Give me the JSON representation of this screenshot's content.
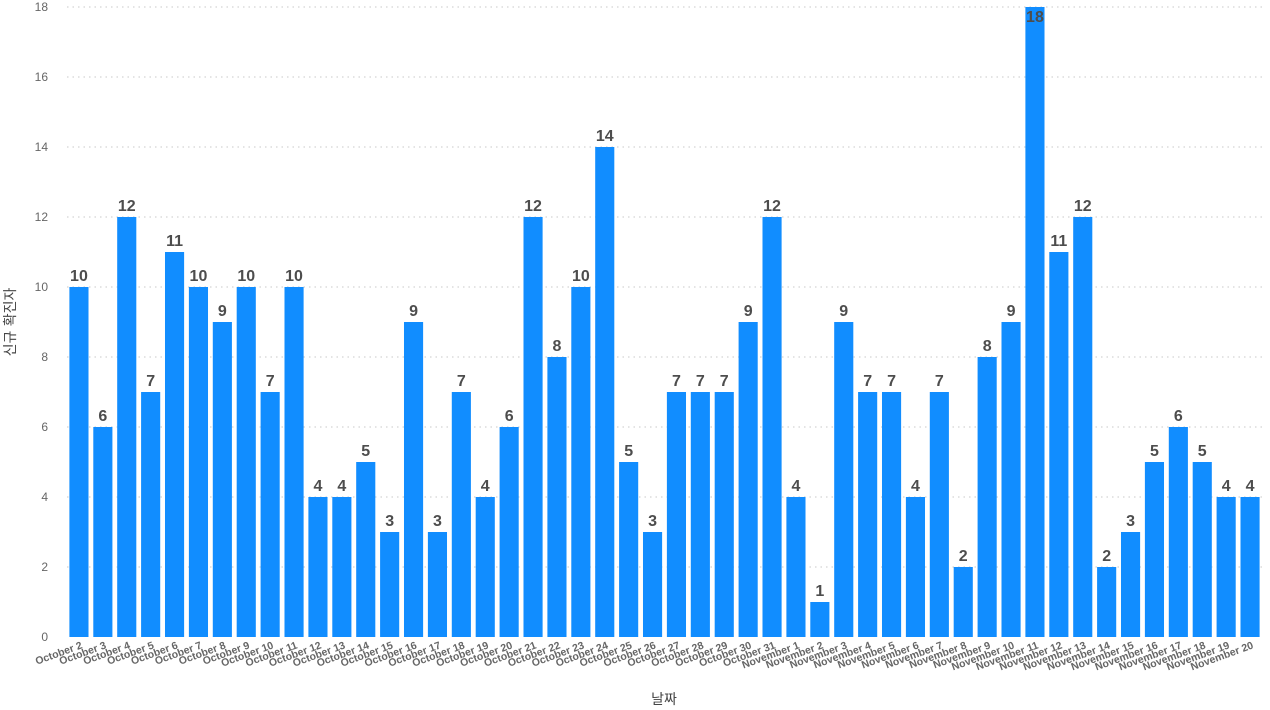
{
  "chart_data": {
    "type": "bar",
    "categories": [
      "October 2",
      "October 3",
      "October 4",
      "October 5",
      "October 6",
      "October 7",
      "October 8",
      "October 9",
      "October 10",
      "October 11",
      "October 12",
      "October 13",
      "October 14",
      "October 15",
      "October 16",
      "October 17",
      "October 18",
      "October 19",
      "October 20",
      "October 21",
      "October 22",
      "October 23",
      "October 24",
      "October 25",
      "October 26",
      "October 27",
      "October 28",
      "October 29",
      "October 30",
      "October 31",
      "November 1",
      "November 2",
      "November 3",
      "November 4",
      "November 5",
      "November 6",
      "November 7",
      "November 8",
      "November 9",
      "November 10",
      "November 11",
      "November 12",
      "November 13",
      "November 14",
      "November 15",
      "November 16",
      "November 17",
      "November 18",
      "November 19",
      "November 20"
    ],
    "values": [
      10,
      6,
      12,
      7,
      11,
      10,
      9,
      10,
      7,
      10,
      4,
      4,
      5,
      3,
      9,
      3,
      7,
      4,
      6,
      12,
      8,
      10,
      14,
      5,
      3,
      7,
      7,
      7,
      9,
      12,
      4,
      1,
      9,
      7,
      7,
      4,
      7,
      2,
      8,
      9,
      18,
      11,
      12,
      2,
      3,
      5,
      6,
      5,
      4,
      4
    ],
    "title": "",
    "xlabel": "날짜",
    "ylabel": "신규 확진자",
    "ylim": [
      0,
      18
    ],
    "yticks": [
      0,
      2,
      4,
      6,
      8,
      10,
      12,
      14,
      16,
      18
    ],
    "grid": true,
    "data_labels": true,
    "bar_color": "#118dff"
  }
}
